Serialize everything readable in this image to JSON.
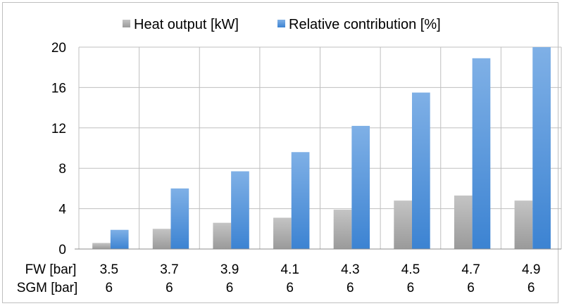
{
  "chart_data": {
    "type": "bar",
    "categories": [
      "3.5",
      "3.7",
      "3.9",
      "4.1",
      "4.3",
      "4.5",
      "4.7",
      "4.9"
    ],
    "secondary_categories": [
      "6",
      "6",
      "6",
      "6",
      "6",
      "6",
      "6",
      "6"
    ],
    "row_labels": [
      "FW [bar]",
      "SGM [bar]"
    ],
    "series": [
      {
        "name": "Heat output [kW]",
        "values": [
          0.6,
          2.0,
          2.6,
          3.1,
          3.9,
          4.8,
          5.3,
          4.8
        ],
        "color": "#a6a6a6"
      },
      {
        "name": "Relative contribution [%]",
        "values": [
          1.9,
          6.0,
          7.7,
          9.6,
          12.2,
          15.5,
          18.9,
          20.0
        ],
        "color": "#4f8fd6"
      }
    ],
    "yticks": [
      "0",
      "4",
      "8",
      "12",
      "16",
      "20"
    ],
    "ylim": [
      0,
      20
    ],
    "grid": true,
    "legend_position": "top"
  }
}
